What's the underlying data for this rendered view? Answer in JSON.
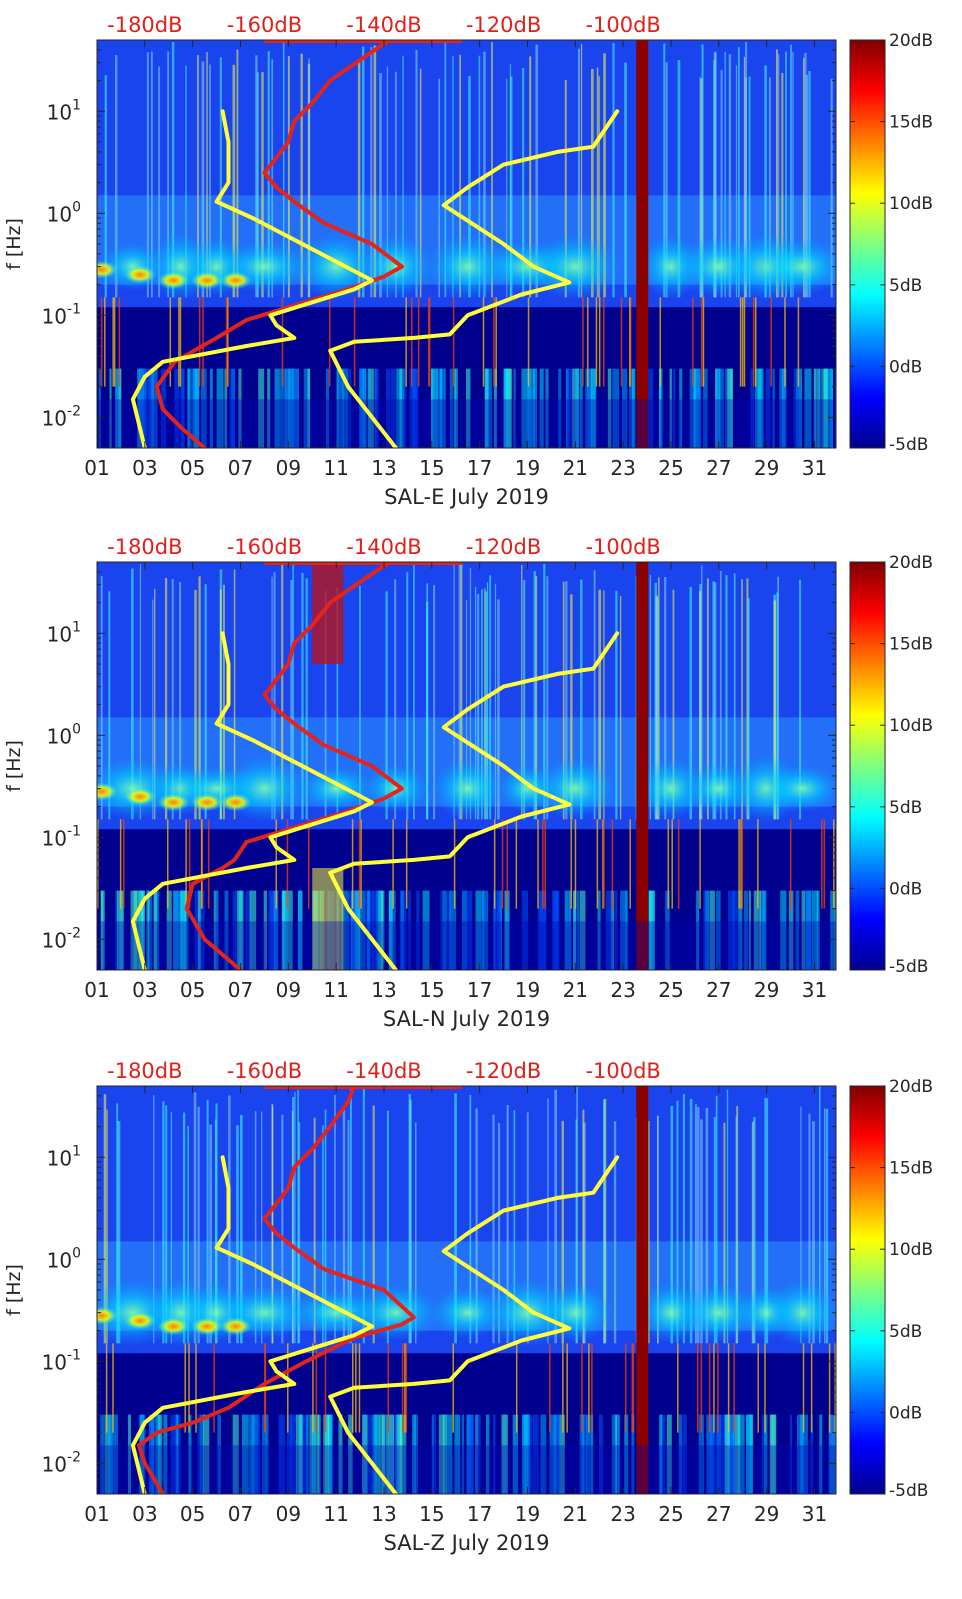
{
  "colors": {
    "background": "#00008f",
    "psd_line": "#e3241c",
    "noise_model": "#ffff3c",
    "band": "#00c8ff",
    "event": "#8b0000"
  },
  "chart_data": [
    {
      "type": "heatmap",
      "title": "",
      "xlabel": "SAL-E July 2019",
      "ylabel": "f [Hz]",
      "x_ticks": [
        "01",
        "03",
        "05",
        "07",
        "09",
        "11",
        "13",
        "15",
        "17",
        "19",
        "21",
        "23",
        "25",
        "27",
        "29",
        "31"
      ],
      "x_range_days": [
        1,
        31.9
      ],
      "y_scale": "log",
      "y_range_hz": [
        0.005,
        50
      ],
      "y_ticks": [
        {
          "value": 0.01,
          "base": "10",
          "exp": "-2"
        },
        {
          "value": 0.1,
          "base": "10",
          "exp": "-1"
        },
        {
          "value": 1,
          "base": "10",
          "exp": "0"
        },
        {
          "value": 10,
          "base": "10",
          "exp": "1"
        }
      ],
      "colorbar": {
        "range_db": [
          -5,
          20
        ],
        "ticks": [
          "20dB",
          "15dB",
          "10dB",
          "5dB",
          "0dB",
          "-5dB"
        ]
      },
      "top_axis": {
        "ticks": [
          "-180dB",
          "-160dB",
          "-140dB",
          "-120dB",
          "-100dB"
        ],
        "positions_day": [
          3,
          8,
          13,
          18,
          23
        ]
      },
      "series": [
        {
          "name": "mean PSD",
          "color": "#e3241c",
          "unit": "dB",
          "points": [
            [
              -170,
              0.005
            ],
            [
              -174,
              0.008
            ],
            [
              -177,
              0.012
            ],
            [
              -178,
              0.02
            ],
            [
              -175,
              0.035
            ],
            [
              -168,
              0.06
            ],
            [
              -163,
              0.09
            ],
            [
              -154,
              0.13
            ],
            [
              -146,
              0.18
            ],
            [
              -140,
              0.24
            ],
            [
              -137,
              0.3
            ],
            [
              -142,
              0.5
            ],
            [
              -150,
              0.8
            ],
            [
              -155,
              1.3
            ],
            [
              -158,
              1.8
            ],
            [
              -160,
              2.5
            ],
            [
              -158,
              3.5
            ],
            [
              -156,
              5
            ],
            [
              -155,
              8
            ],
            [
              -152,
              12
            ],
            [
              -149,
              20
            ],
            [
              -143,
              35
            ],
            [
              -139,
              50
            ]
          ]
        },
        {
          "name": "noise model low",
          "color": "#ffff3c",
          "unit": "dB",
          "points": [
            [
              -180,
              0.005
            ],
            [
              -182,
              0.015
            ],
            [
              -180,
              0.025
            ],
            [
              -177,
              0.035
            ],
            [
              -163,
              0.05
            ],
            [
              -155,
              0.06
            ],
            [
              -158,
              0.08
            ],
            [
              -159,
              0.1
            ],
            [
              -145,
              0.18
            ],
            [
              -142,
              0.22
            ],
            [
              -162,
              0.9
            ],
            [
              -168,
              1.3
            ],
            [
              -166,
              2
            ],
            [
              -166,
              5
            ],
            [
              -167,
              10
            ]
          ]
        },
        {
          "name": "noise model high",
          "color": "#ffff3c",
          "unit": "dB",
          "points": [
            [
              -138,
              0.005
            ],
            [
              -146,
              0.02
            ],
            [
              -149,
              0.045
            ],
            [
              -145,
              0.055
            ],
            [
              -135,
              0.06
            ],
            [
              -129,
              0.065
            ],
            [
              -126,
              0.1
            ],
            [
              -117,
              0.16
            ],
            [
              -109,
              0.21
            ],
            [
              -115,
              0.3
            ],
            [
              -120,
              0.5
            ],
            [
              -130,
              1.2
            ],
            [
              -126,
              1.8
            ],
            [
              -120,
              3
            ],
            [
              -111,
              4
            ],
            [
              -105,
              4.5
            ],
            [
              -101,
              10
            ]
          ]
        }
      ],
      "dark_column_day": 23.8
    },
    {
      "type": "heatmap",
      "title": "",
      "xlabel": "SAL-N July 2019",
      "ylabel": "f [Hz]",
      "x_ticks": [
        "01",
        "03",
        "05",
        "07",
        "09",
        "11",
        "13",
        "15",
        "17",
        "19",
        "21",
        "23",
        "25",
        "27",
        "29",
        "31"
      ],
      "x_range_days": [
        1,
        31.9
      ],
      "y_scale": "log",
      "y_range_hz": [
        0.005,
        50
      ],
      "y_ticks": [
        {
          "value": 0.01,
          "base": "10",
          "exp": "-2"
        },
        {
          "value": 0.1,
          "base": "10",
          "exp": "-1"
        },
        {
          "value": 1,
          "base": "10",
          "exp": "0"
        },
        {
          "value": 10,
          "base": "10",
          "exp": "1"
        }
      ],
      "colorbar": {
        "range_db": [
          -5,
          20
        ],
        "ticks": [
          "20dB",
          "15dB",
          "10dB",
          "5dB",
          "0dB",
          "-5dB"
        ]
      },
      "top_axis": {
        "ticks": [
          "-180dB",
          "-160dB",
          "-140dB",
          "-120dB",
          "-100dB"
        ],
        "positions_day": [
          3,
          8,
          13,
          18,
          23
        ]
      },
      "series": [
        {
          "name": "mean PSD",
          "color": "#e3241c",
          "unit": "dB",
          "points": [
            [
              -164,
              0.005
            ],
            [
              -170,
              0.01
            ],
            [
              -173,
              0.02
            ],
            [
              -172,
              0.035
            ],
            [
              -167,
              0.05
            ],
            [
              -165,
              0.06
            ],
            [
              -163,
              0.09
            ],
            [
              -154,
              0.13
            ],
            [
              -146,
              0.18
            ],
            [
              -140,
              0.24
            ],
            [
              -137,
              0.3
            ],
            [
              -142,
              0.5
            ],
            [
              -150,
              0.8
            ],
            [
              -155,
              1.3
            ],
            [
              -158,
              1.8
            ],
            [
              -160,
              2.5
            ],
            [
              -158,
              3.5
            ],
            [
              -156,
              5
            ],
            [
              -155,
              8
            ],
            [
              -152,
              12
            ],
            [
              -149,
              20
            ],
            [
              -143,
              35
            ],
            [
              -139,
              50
            ]
          ]
        },
        {
          "name": "noise model low",
          "color": "#ffff3c",
          "unit": "dB",
          "points": [
            [
              -180,
              0.005
            ],
            [
              -182,
              0.015
            ],
            [
              -180,
              0.025
            ],
            [
              -177,
              0.035
            ],
            [
              -163,
              0.05
            ],
            [
              -155,
              0.06
            ],
            [
              -158,
              0.08
            ],
            [
              -159,
              0.1
            ],
            [
              -145,
              0.18
            ],
            [
              -142,
              0.22
            ],
            [
              -162,
              0.9
            ],
            [
              -168,
              1.3
            ],
            [
              -166,
              2
            ],
            [
              -166,
              5
            ],
            [
              -167,
              10
            ]
          ]
        },
        {
          "name": "noise model high",
          "color": "#ffff3c",
          "unit": "dB",
          "points": [
            [
              -138,
              0.005
            ],
            [
              -146,
              0.02
            ],
            [
              -149,
              0.045
            ],
            [
              -145,
              0.055
            ],
            [
              -135,
              0.06
            ],
            [
              -129,
              0.065
            ],
            [
              -126,
              0.1
            ],
            [
              -117,
              0.16
            ],
            [
              -109,
              0.21
            ],
            [
              -115,
              0.3
            ],
            [
              -120,
              0.5
            ],
            [
              -130,
              1.2
            ],
            [
              -126,
              1.8
            ],
            [
              -120,
              3
            ],
            [
              -111,
              4
            ],
            [
              -105,
              4.5
            ],
            [
              -101,
              10
            ]
          ]
        }
      ],
      "dark_column_day": 23.8
    },
    {
      "type": "heatmap",
      "title": "",
      "xlabel": "SAL-Z July 2019",
      "ylabel": "f [Hz]",
      "x_ticks": [
        "01",
        "03",
        "05",
        "07",
        "09",
        "11",
        "13",
        "15",
        "17",
        "19",
        "21",
        "23",
        "25",
        "27",
        "29",
        "31"
      ],
      "x_range_days": [
        1,
        31.9
      ],
      "y_scale": "log",
      "y_range_hz": [
        0.005,
        50
      ],
      "y_ticks": [
        {
          "value": 0.01,
          "base": "10",
          "exp": "-2"
        },
        {
          "value": 0.1,
          "base": "10",
          "exp": "-1"
        },
        {
          "value": 1,
          "base": "10",
          "exp": "0"
        },
        {
          "value": 10,
          "base": "10",
          "exp": "1"
        }
      ],
      "colorbar": {
        "range_db": [
          -5,
          20
        ],
        "ticks": [
          "20dB",
          "15dB",
          "10dB",
          "5dB",
          "0dB",
          "-5dB"
        ]
      },
      "top_axis": {
        "ticks": [
          "-180dB",
          "-160dB",
          "-140dB",
          "-120dB",
          "-100dB"
        ],
        "positions_day": [
          3,
          8,
          13,
          18,
          23
        ]
      },
      "series": [
        {
          "name": "mean PSD",
          "color": "#e3241c",
          "unit": "dB",
          "points": [
            [
              -177,
              0.005
            ],
            [
              -180,
              0.01
            ],
            [
              -181,
              0.015
            ],
            [
              -178,
              0.02
            ],
            [
              -172,
              0.025
            ],
            [
              -166,
              0.035
            ],
            [
              -160,
              0.06
            ],
            [
              -153,
              0.1
            ],
            [
              -145,
              0.17
            ],
            [
              -137,
              0.23
            ],
            [
              -135,
              0.27
            ],
            [
              -140,
              0.5
            ],
            [
              -150,
              0.8
            ],
            [
              -155,
              1.3
            ],
            [
              -158,
              1.8
            ],
            [
              -160,
              2.5
            ],
            [
              -158,
              3.5
            ],
            [
              -156,
              5
            ],
            [
              -155,
              8
            ],
            [
              -152,
              12
            ],
            [
              -149,
              20
            ],
            [
              -146,
              35
            ],
            [
              -145,
              50
            ]
          ]
        },
        {
          "name": "noise model low",
          "color": "#ffff3c",
          "unit": "dB",
          "points": [
            [
              -180,
              0.005
            ],
            [
              -182,
              0.015
            ],
            [
              -180,
              0.025
            ],
            [
              -177,
              0.035
            ],
            [
              -163,
              0.05
            ],
            [
              -155,
              0.06
            ],
            [
              -158,
              0.08
            ],
            [
              -159,
              0.1
            ],
            [
              -145,
              0.18
            ],
            [
              -142,
              0.22
            ],
            [
              -162,
              0.9
            ],
            [
              -168,
              1.3
            ],
            [
              -166,
              2
            ],
            [
              -166,
              5
            ],
            [
              -167,
              10
            ]
          ]
        },
        {
          "name": "noise model high",
          "color": "#ffff3c",
          "unit": "dB",
          "points": [
            [
              -138,
              0.005
            ],
            [
              -146,
              0.02
            ],
            [
              -149,
              0.045
            ],
            [
              -145,
              0.055
            ],
            [
              -135,
              0.06
            ],
            [
              -129,
              0.065
            ],
            [
              -126,
              0.1
            ],
            [
              -117,
              0.16
            ],
            [
              -109,
              0.21
            ],
            [
              -115,
              0.3
            ],
            [
              -120,
              0.5
            ],
            [
              -130,
              1.2
            ],
            [
              -126,
              1.8
            ],
            [
              -120,
              3
            ],
            [
              -111,
              4
            ],
            [
              -105,
              4.5
            ],
            [
              -101,
              10
            ]
          ]
        }
      ],
      "dark_column_day": 23.8
    }
  ]
}
